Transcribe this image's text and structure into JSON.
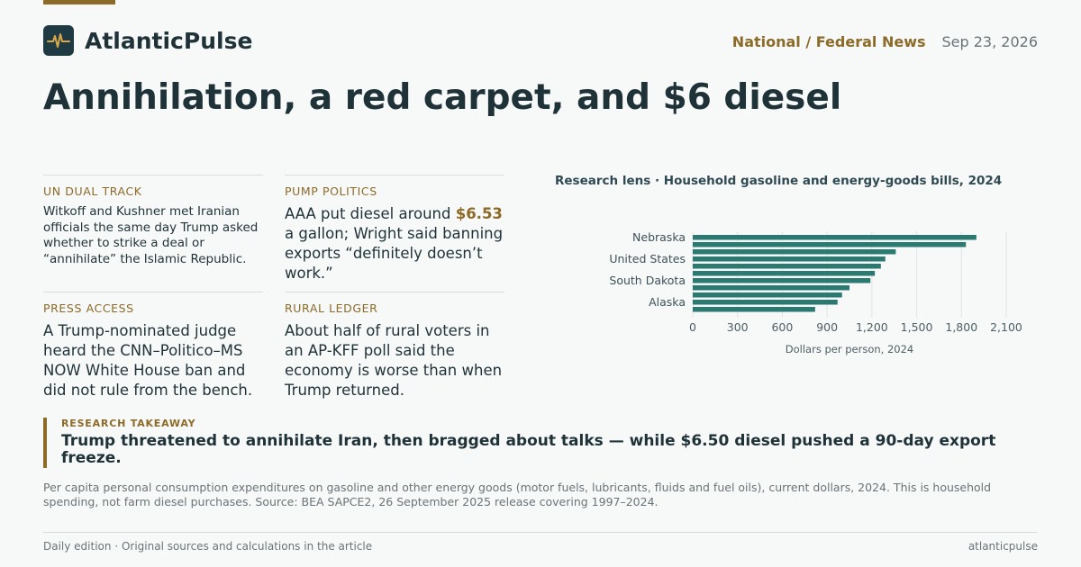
{
  "brand": {
    "name": "AtlanticPulse",
    "logo_icon": "pulse-icon",
    "accent": "#8c6a28",
    "dark": "#203a44"
  },
  "header": {
    "section": "National / Federal News",
    "date": "Sep 23, 2026"
  },
  "headline": "Annihilation, a red carpet, and $6 diesel",
  "cards": [
    {
      "kicker": "UN DUAL TRACK",
      "body": "Witkoff and Kushner met Iranian officials the same day Trump asked whether to strike a deal or “annihilate” the Islamic Republic."
    },
    {
      "kicker": "PUMP POLITICS",
      "body_pre": "AAA put diesel around ",
      "body_highlight": "$6.53",
      "body_post": " a gallon; Wright said banning exports “definitely doesn’t work.”"
    },
    {
      "kicker": "PRESS ACCESS",
      "body": "A Trump-nominated judge heard the CNN–Politico–MS NOW White House ban and did not rule from the bench."
    },
    {
      "kicker": "RURAL LEDGER",
      "body": "About half of rural voters in an AP-KFF poll said the economy is worse than when Trump returned."
    }
  ],
  "chart_data": {
    "type": "bar",
    "orientation": "horizontal",
    "title": "Research lens · Household gasoline and energy-goods bills, 2024",
    "xlabel": "Dollars per person, 2024",
    "category_labels": [
      "Nebraska",
      "United States",
      "South Dakota",
      "Alaska"
    ],
    "values": [
      1900,
      1830,
      1360,
      1290,
      1260,
      1220,
      1190,
      1050,
      1000,
      970,
      820
    ],
    "label_rows": [
      0,
      3,
      6,
      9
    ],
    "xlim": [
      0,
      2100
    ],
    "ticks": [
      "0",
      "300",
      "600",
      "900",
      "1,200",
      "1,500",
      "1,800",
      "2,100"
    ],
    "tick_values": [
      0,
      300,
      600,
      900,
      1200,
      1500,
      1800,
      2100
    ],
    "bar_color": "#2a7a72",
    "grid": true
  },
  "takeaway": {
    "kicker": "RESEARCH TAKEAWAY",
    "text": "Trump threatened to annihilate Iran, then bragged about talks — while $6.50 diesel pushed a 90-day export freeze."
  },
  "note": "Per capita personal consumption expenditures on gasoline and other energy goods (motor fuels, lubricants, fluids and fuel oils), current dollars, 2024. This is household spending, not farm diesel purchases. Source: BEA SAPCE2, 26 September 2025 release covering 1997–2024.",
  "footer": {
    "left": "Daily edition · Original sources and calculations in the article",
    "right": "atlanticpulse"
  }
}
